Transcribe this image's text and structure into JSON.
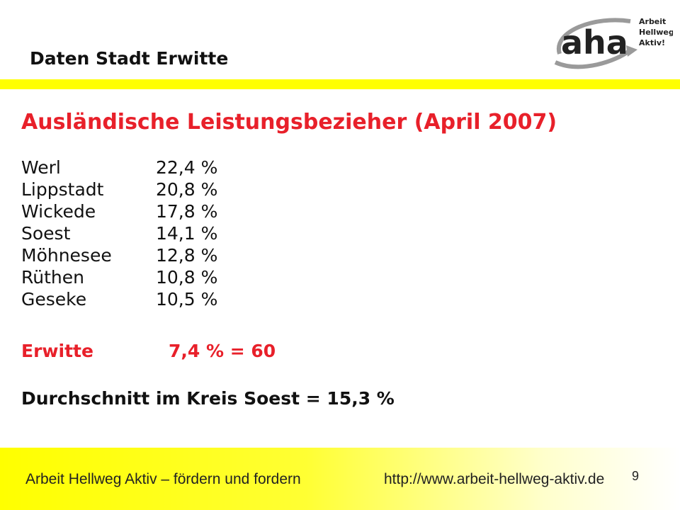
{
  "header": {
    "title": "Daten Stadt Erwitte"
  },
  "logo": {
    "icon": "aha-logo-icon",
    "mark": "aha",
    "tagline": [
      "Arbeit",
      "Hellweg",
      "Aktiv!"
    ],
    "colors": {
      "mark": "#222222",
      "swoosh": "#9a9a9a",
      "accent": "#ffff00"
    }
  },
  "slide": {
    "title": "Ausländische Leistungsbezieher (April 2007)",
    "rows": [
      {
        "city": "Werl",
        "value": "22,4  %"
      },
      {
        "city": "Lippstadt",
        "value": "20,8 %"
      },
      {
        "city": "Wickede",
        "value": "17,8 %"
      },
      {
        "city": "Soest",
        "value": "14,1 %"
      },
      {
        "city": "Möhnesee",
        "value": "12,8 %"
      },
      {
        "city": "Rüthen",
        "value": "10,8 %"
      },
      {
        "city": "Geseke",
        "value": "10,5 %"
      }
    ],
    "highlight": {
      "city": "Erwitte",
      "value": "7,4 % = 60"
    },
    "average": "Durchschnitt im Kreis Soest = 15,3 %"
  },
  "footer": {
    "left": "Arbeit Hellweg Aktiv – fördern und fordern",
    "url": "http://www.arbeit-hellweg-aktiv.de",
    "page": "9"
  },
  "colors": {
    "accent_yellow": "#ffff00",
    "title_red": "#e8202a"
  }
}
